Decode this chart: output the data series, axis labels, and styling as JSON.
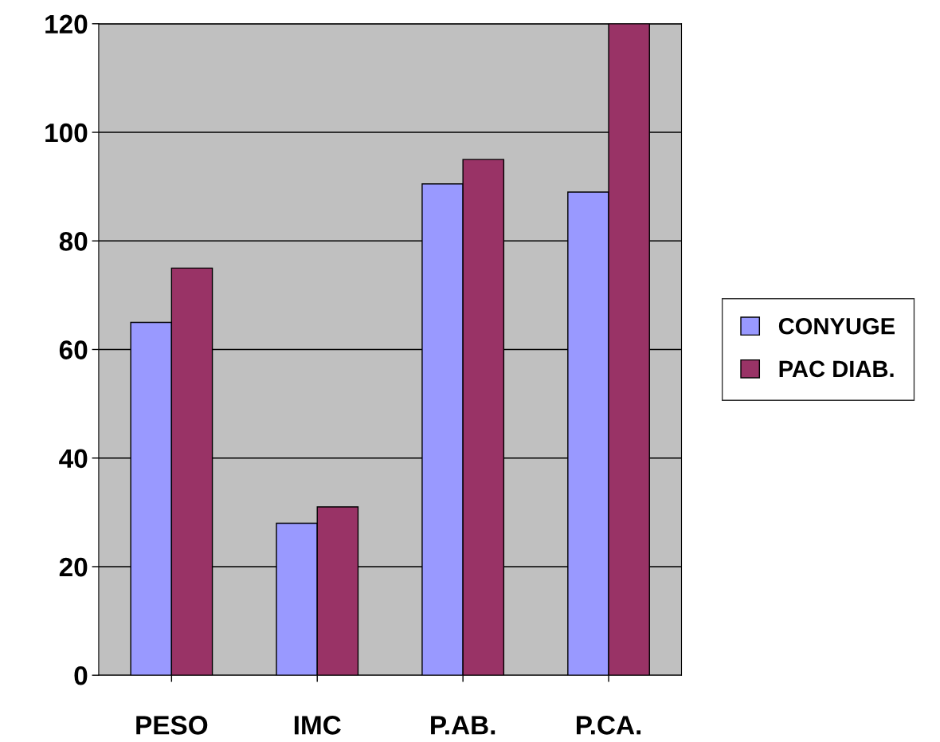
{
  "chart_data": {
    "type": "bar",
    "categories": [
      "PESO",
      "IMC",
      "P.AB.",
      "P.CA."
    ],
    "series": [
      {
        "name": "CONYUGE",
        "color": "#9999ff",
        "values": [
          65,
          28,
          90.5,
          89
        ]
      },
      {
        "name": "PAC DIAB.",
        "color": "#993366",
        "values": [
          75,
          31,
          95,
          120
        ]
      }
    ],
    "ylim": [
      0,
      120
    ],
    "yticks": [
      0,
      20,
      40,
      60,
      80,
      100,
      120
    ],
    "grid": "y",
    "legend": "right"
  }
}
